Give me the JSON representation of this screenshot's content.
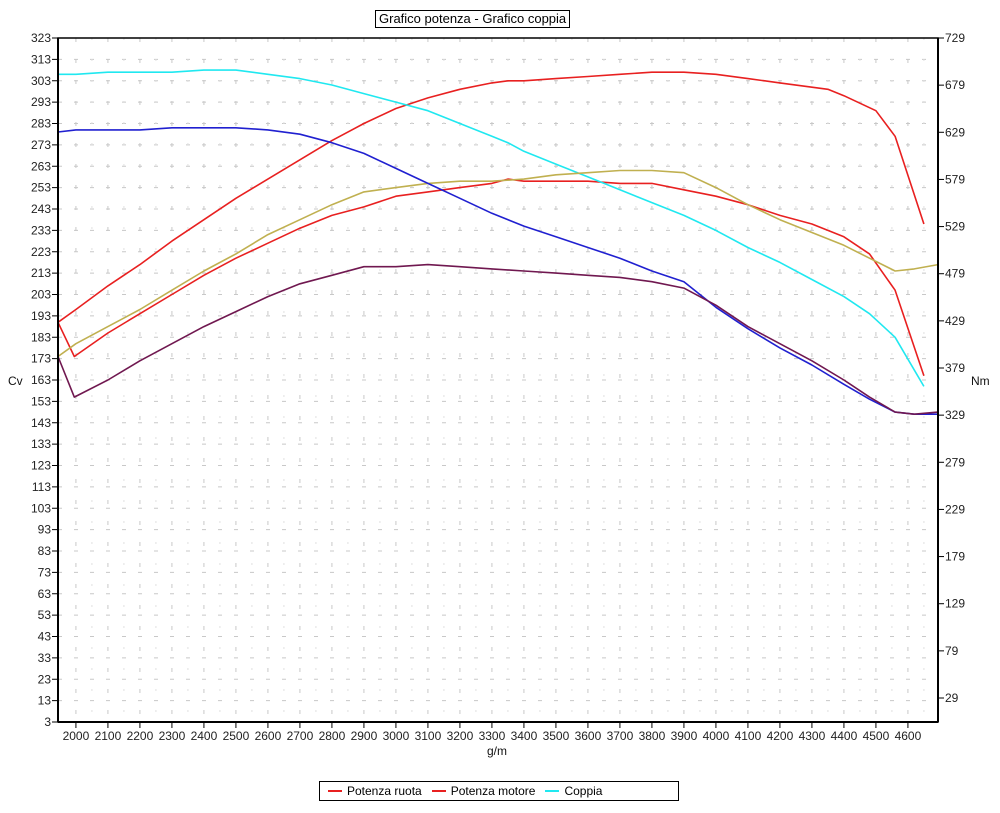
{
  "chart_data": {
    "type": "line",
    "title": "Grafico potenza - Grafico coppia",
    "xlabel": "g/m",
    "ylabel": "Cv",
    "y2label": "Nm",
    "xlim": [
      1944,
      4694
    ],
    "ylim": [
      3,
      323
    ],
    "y2lim": [
      29,
      729
    ],
    "grid": true,
    "legend_position": "bottom",
    "x_ticks": [
      2000,
      2100,
      2200,
      2300,
      2400,
      2500,
      2600,
      2700,
      2800,
      2900,
      3000,
      3100,
      3200,
      3300,
      3400,
      3500,
      3600,
      3700,
      3800,
      3900,
      4000,
      4100,
      4200,
      4300,
      4400,
      4500,
      4600
    ],
    "y_ticks": [
      323,
      313,
      303,
      293,
      283,
      273,
      263,
      253,
      243,
      233,
      223,
      213,
      203,
      193,
      183,
      173,
      163,
      153,
      143,
      133,
      123,
      113,
      103,
      93,
      83,
      73,
      63,
      53,
      43,
      33,
      23,
      13,
      3
    ],
    "y2_ticks": [
      729,
      679,
      629,
      579,
      529,
      479,
      429,
      379,
      329,
      279,
      229,
      179,
      129,
      79,
      29
    ],
    "legend": [
      {
        "label": "Potenza ruota",
        "color": "#e82020"
      },
      {
        "label": "Potenza motore",
        "color": "#e82020"
      },
      {
        "label": "Coppia",
        "color": "#20e8f0"
      }
    ],
    "series": [
      {
        "name": "Potenza ruota (upper red)",
        "color": "#e82020",
        "x": [
          1944,
          2000,
          2100,
          2200,
          2300,
          2400,
          2500,
          2600,
          2700,
          2800,
          2900,
          3000,
          3100,
          3200,
          3300,
          3350,
          3400,
          3500,
          3600,
          3700,
          3800,
          3850,
          3900,
          4000,
          4100,
          4200,
          4300,
          4350,
          4400,
          4500,
          4560,
          4650
        ],
        "values": [
          190,
          196,
          207,
          217,
          228,
          238,
          248,
          257,
          266,
          275,
          283,
          290,
          295,
          299,
          302,
          303,
          303,
          304,
          305,
          306,
          307,
          307,
          307,
          306,
          304,
          302,
          300,
          299,
          296,
          289,
          277,
          236
        ]
      },
      {
        "name": "Potenza motore (lower red)",
        "color": "#e82020",
        "x": [
          1944,
          1995,
          2100,
          2200,
          2300,
          2400,
          2500,
          2600,
          2700,
          2800,
          2900,
          3000,
          3100,
          3200,
          3300,
          3350,
          3400,
          3500,
          3600,
          3700,
          3800,
          3900,
          4000,
          4100,
          4200,
          4300,
          4350,
          4400,
          4480,
          4560,
          4650
        ],
        "values": [
          190,
          174,
          185,
          194,
          203,
          212,
          220,
          227,
          234,
          240,
          244,
          249,
          251,
          253,
          255,
          257,
          256,
          256,
          256,
          255,
          255,
          252,
          249,
          245,
          240,
          236,
          233,
          230,
          222,
          205,
          165
        ]
      },
      {
        "name": "Coppia (cyan)",
        "color": "#20e8f0",
        "x": [
          1944,
          2000,
          2100,
          2200,
          2300,
          2400,
          2500,
          2600,
          2700,
          2800,
          2900,
          3000,
          3100,
          3200,
          3300,
          3350,
          3400,
          3500,
          3600,
          3700,
          3800,
          3900,
          4000,
          4100,
          4200,
          4300,
          4400,
          4480,
          4560,
          4650
        ],
        "values": [
          306,
          306,
          307,
          307,
          307,
          308,
          308,
          306,
          304,
          301,
          297,
          293,
          289,
          283,
          277,
          274,
          270,
          264,
          258,
          252,
          246,
          240,
          233,
          225,
          218,
          210,
          202,
          194,
          183,
          160
        ]
      },
      {
        "name": "Olive curve",
        "color": "#c0b050",
        "x": [
          1944,
          2000,
          2100,
          2200,
          2300,
          2400,
          2500,
          2600,
          2700,
          2800,
          2900,
          3000,
          3100,
          3200,
          3300,
          3400,
          3500,
          3600,
          3700,
          3800,
          3900,
          4000,
          4100,
          4200,
          4300,
          4400,
          4480,
          4560,
          4620,
          4694
        ],
        "values": [
          174,
          180,
          188,
          196,
          205,
          214,
          222,
          231,
          238,
          245,
          251,
          253,
          255,
          256,
          256,
          257,
          259,
          260,
          261,
          261,
          260,
          253,
          245,
          238,
          232,
          226,
          220,
          214,
          215,
          217
        ]
      },
      {
        "name": "Blue curve",
        "color": "#2020d0",
        "x": [
          1944,
          2000,
          2100,
          2200,
          2300,
          2400,
          2500,
          2600,
          2700,
          2800,
          2900,
          3000,
          3100,
          3200,
          3300,
          3400,
          3500,
          3600,
          3700,
          3800,
          3900,
          4000,
          4100,
          4200,
          4300,
          4400,
          4480,
          4560,
          4620,
          4694
        ],
        "values": [
          279,
          280,
          280,
          280,
          281,
          281,
          281,
          280,
          278,
          274,
          269,
          262,
          255,
          248,
          241,
          235,
          230,
          225,
          220,
          214,
          209,
          197,
          187,
          178,
          170,
          161,
          154,
          148,
          147,
          147
        ]
      },
      {
        "name": "Purple curve",
        "color": "#701850",
        "x": [
          1944,
          1995,
          2100,
          2200,
          2300,
          2400,
          2500,
          2600,
          2700,
          2800,
          2900,
          3000,
          3100,
          3200,
          3300,
          3400,
          3500,
          3600,
          3700,
          3800,
          3900,
          4000,
          4100,
          4200,
          4300,
          4400,
          4480,
          4560,
          4620,
          4694
        ],
        "values": [
          174,
          155,
          163,
          172,
          180,
          188,
          195,
          202,
          208,
          212,
          216,
          216,
          217,
          216,
          215,
          214,
          213,
          212,
          211,
          209,
          206,
          198,
          188,
          180,
          172,
          163,
          155,
          148,
          147,
          148
        ]
      }
    ]
  }
}
